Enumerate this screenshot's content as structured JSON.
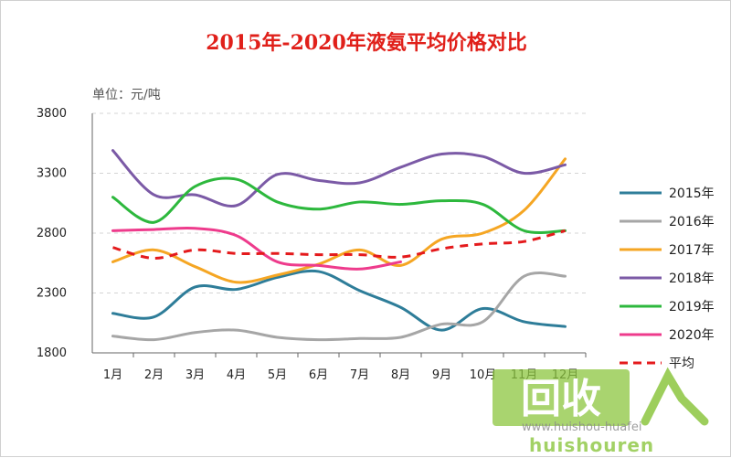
{
  "chart_data": {
    "type": "line",
    "title": "2015年-2020年液氨平均价格对比",
    "unit_label": "单位：元/吨",
    "ylim": [
      1800,
      3800
    ],
    "yticks": [
      1800,
      2300,
      2800,
      3300,
      3800
    ],
    "categories": [
      "1月",
      "2月",
      "3月",
      "4月",
      "5月",
      "6月",
      "7月",
      "8月",
      "9月",
      "10月",
      "11月",
      "12月"
    ],
    "grid": true,
    "legend_position": "right",
    "series": [
      {
        "name": "2015年",
        "color": "#2e7d99",
        "dashed": false,
        "values": [
          2130,
          2100,
          2350,
          2330,
          2430,
          2480,
          2320,
          2180,
          1990,
          2170,
          2060,
          2020
        ]
      },
      {
        "name": "2016年",
        "color": "#a6a6a6",
        "dashed": false,
        "values": [
          1940,
          1910,
          1970,
          1990,
          1930,
          1910,
          1920,
          1930,
          2040,
          2060,
          2440,
          2440
        ]
      },
      {
        "name": "2017年",
        "color": "#f5a623",
        "dashed": false,
        "values": [
          2560,
          2660,
          2520,
          2390,
          2450,
          2540,
          2660,
          2530,
          2750,
          2800,
          2990,
          3420
        ]
      },
      {
        "name": "2018年",
        "color": "#7b5aa6",
        "dashed": false,
        "values": [
          3490,
          3120,
          3120,
          3030,
          3290,
          3240,
          3220,
          3350,
          3460,
          3440,
          3300,
          3370
        ]
      },
      {
        "name": "2019年",
        "color": "#2db83d",
        "dashed": false,
        "values": [
          3100,
          2890,
          3190,
          3250,
          3060,
          3000,
          3060,
          3040,
          3070,
          3040,
          2820,
          2820
        ]
      },
      {
        "name": "2020年",
        "color": "#ee3b8c",
        "dashed": false,
        "values": [
          2820,
          2830,
          2840,
          2780,
          2560,
          2530,
          2500,
          2560,
          null,
          null,
          null,
          null
        ]
      },
      {
        "name": "平均",
        "color": "#e41a1c",
        "dashed": true,
        "values": [
          2680,
          2590,
          2660,
          2630,
          2630,
          2620,
          2620,
          2600,
          2670,
          2710,
          2730,
          2820
        ]
      }
    ]
  },
  "watermark": {
    "logo_text": "回收",
    "site_text": "huishouren",
    "url_text": "www.huishou-huafei"
  }
}
